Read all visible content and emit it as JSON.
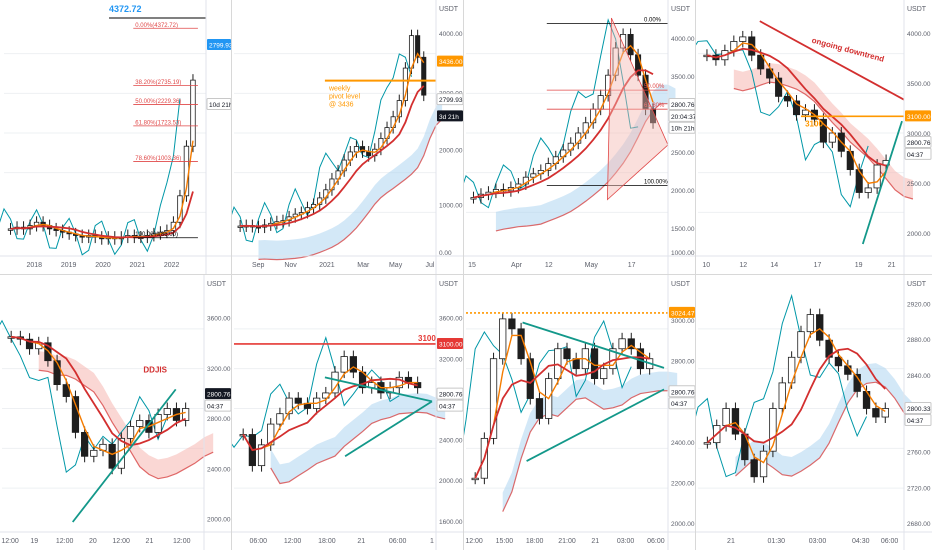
{
  "colors": {
    "bg": "#ffffff",
    "axis": "#5d606b",
    "grid": "#eef0f3",
    "candle_up": "#ffffff",
    "candle_down": "#1e1e1e",
    "wick": "#1e1e1e",
    "kijun": "#d32f2f",
    "tenkan": "#f57c00",
    "chikou": "#0097a7",
    "cloud_bull": "#aed6f1",
    "cloud_bear": "#f5b7b1",
    "trend": "#13988a",
    "fib": "#e04848",
    "badge_blue": "#2196f3",
    "badge_orange": "#ff9800",
    "badge_red": "#e53935",
    "badge_dark": "#131722"
  },
  "chart_data": [
    {
      "id": "p1",
      "type": "candlestick",
      "x_labels": [
        "2018",
        "2019",
        "2020",
        "2021",
        "2022"
      ],
      "y_labels": [],
      "close": [
        10,
        11,
        10,
        12,
        14,
        12,
        10,
        9,
        8,
        7,
        6,
        5,
        6,
        5,
        4,
        5,
        4,
        5,
        6,
        5,
        5,
        6,
        7,
        8,
        9,
        14,
        30,
        60,
        100
      ],
      "annotations": [
        "4372.72",
        "0.00%(4372.72)",
        "38.20%(2735.19)",
        "50.00%(2229.36)",
        "61.80%(1723.53)",
        "78.60%(1003.36)",
        "100.00%(86.00)"
      ],
      "badges": [
        "2799.93",
        "10d 21h"
      ]
    },
    {
      "id": "p2",
      "type": "candlestick",
      "currency": "USDT",
      "x_labels": [
        "Sep",
        "Nov",
        "2021",
        "Mar",
        "May",
        "Jul"
      ],
      "y_labels": [
        "4000.00",
        "3000.00",
        "2000.00",
        "1000.00",
        "0.00"
      ],
      "close": [
        380,
        390,
        370,
        360,
        400,
        430,
        460,
        480,
        550,
        600,
        630,
        720,
        780,
        900,
        1050,
        1250,
        1400,
        1600,
        1750,
        1850,
        1750,
        1680,
        1800,
        2000,
        2200,
        2400,
        2700,
        3300,
        3900,
        3500,
        2800
      ],
      "annotations": [
        "weekly",
        "pivot level",
        "@ 3436"
      ],
      "badges": [
        "3436.00",
        "2799.93",
        "3d 21h"
      ]
    },
    {
      "id": "p3",
      "type": "candlestick",
      "currency": "USDT",
      "x_labels": [
        "15",
        "Apr",
        "12",
        "May",
        "17"
      ],
      "y_labels": [
        "4000.00",
        "3500.00",
        "3000.00",
        "2500.00",
        "2000.00",
        "1500.00",
        "1000.00"
      ],
      "close": [
        1700,
        1750,
        1780,
        1820,
        1800,
        1850,
        1900,
        2000,
        2050,
        2100,
        2200,
        2300,
        2400,
        2500,
        2650,
        2800,
        3000,
        3200,
        3500,
        3900,
        4100,
        3800,
        3500,
        3000,
        2800
      ],
      "annotations": [
        "0.00%",
        "50.00%",
        "61.80%",
        "100.00%"
      ],
      "badges": [
        "2800.76",
        "20:04:37",
        "10h 21h"
      ]
    },
    {
      "id": "p4",
      "type": "candlestick",
      "currency": "USDT",
      "x_labels": [
        "10",
        "12",
        "14",
        "17",
        "19",
        "21"
      ],
      "y_labels": [
        "4000.00",
        "3500.00",
        "3000.00",
        "2500.00",
        "2000.00"
      ],
      "close": [
        3950,
        3900,
        4000,
        4100,
        4150,
        3950,
        3800,
        3700,
        3500,
        3450,
        3300,
        3350,
        3250,
        3000,
        3100,
        2900,
        2700,
        2450,
        2500,
        2750,
        2800
      ],
      "annotations": [
        "ongoing downtrend",
        "3100"
      ],
      "badges": [
        "3100.00",
        "2800.76",
        "04:37"
      ]
    },
    {
      "id": "p5",
      "type": "candlestick",
      "currency": "USDT",
      "x_labels": [
        "12:00",
        "19",
        "12:00",
        "20",
        "12:00",
        "21",
        "12:00"
      ],
      "y_labels": [
        "3600.00",
        "3200.00",
        "2800.00",
        "2400.00",
        "2000.00"
      ],
      "close": [
        3400,
        3380,
        3300,
        3350,
        3200,
        3000,
        2900,
        2600,
        2400,
        2450,
        2500,
        2300,
        2550,
        2650,
        2700,
        2600,
        2750,
        2800,
        2700,
        2800
      ],
      "annotations": [
        "DDJIS"
      ],
      "badges": [
        "2800.76",
        "04:37"
      ]
    },
    {
      "id": "p6",
      "type": "candlestick",
      "currency": "USDT",
      "x_labels": [
        "06:00",
        "12:00",
        "18:00",
        "21",
        "06:00",
        "1"
      ],
      "y_labels": [
        "3600.00",
        "3200.00",
        "2800.00",
        "2400.00",
        "2000.00",
        "1600.00"
      ],
      "close": [
        2400,
        2100,
        2300,
        2500,
        2600,
        2750,
        2700,
        2650,
        2750,
        2800,
        3000,
        3150,
        3000,
        2850,
        2900,
        2800,
        2850,
        2950,
        2900,
        2850
      ],
      "annotations": [
        "3100"
      ],
      "badges": [
        "3100.00",
        "2800.76",
        "04:37"
      ]
    },
    {
      "id": "p7",
      "type": "candlestick",
      "currency": "USDT",
      "x_labels": [
        "12:00",
        "15:00",
        "18:00",
        "21:00",
        "21",
        "03:00",
        "06:00"
      ],
      "y_labels": [
        "3000.00",
        "2800.00",
        "2600.00",
        "2400.00",
        "2200.00",
        "2000.00"
      ],
      "close": [
        2200,
        2400,
        2800,
        3000,
        2950,
        2800,
        2600,
        2500,
        2700,
        2850,
        2800,
        2750,
        2850,
        2700,
        2750,
        2850,
        2900,
        2850,
        2750,
        2800
      ],
      "annotations": [],
      "badges": [
        "3024.47",
        "2800.76",
        "04:37"
      ]
    },
    {
      "id": "p8",
      "type": "candlestick",
      "currency": "USDT",
      "x_labels": [
        "21",
        "01:30",
        "03:00",
        "04:30",
        "06:00"
      ],
      "y_labels": [
        "2920.00",
        "2880.00",
        "2840.00",
        "2800.00",
        "2760.00",
        "2720.00",
        "2680.00"
      ],
      "close": [
        2760,
        2780,
        2800,
        2770,
        2740,
        2720,
        2750,
        2800,
        2830,
        2860,
        2890,
        2910,
        2880,
        2860,
        2850,
        2840,
        2820,
        2800,
        2790,
        2800
      ],
      "annotations": [],
      "badges": [
        "2800.33",
        "04:37"
      ]
    }
  ]
}
